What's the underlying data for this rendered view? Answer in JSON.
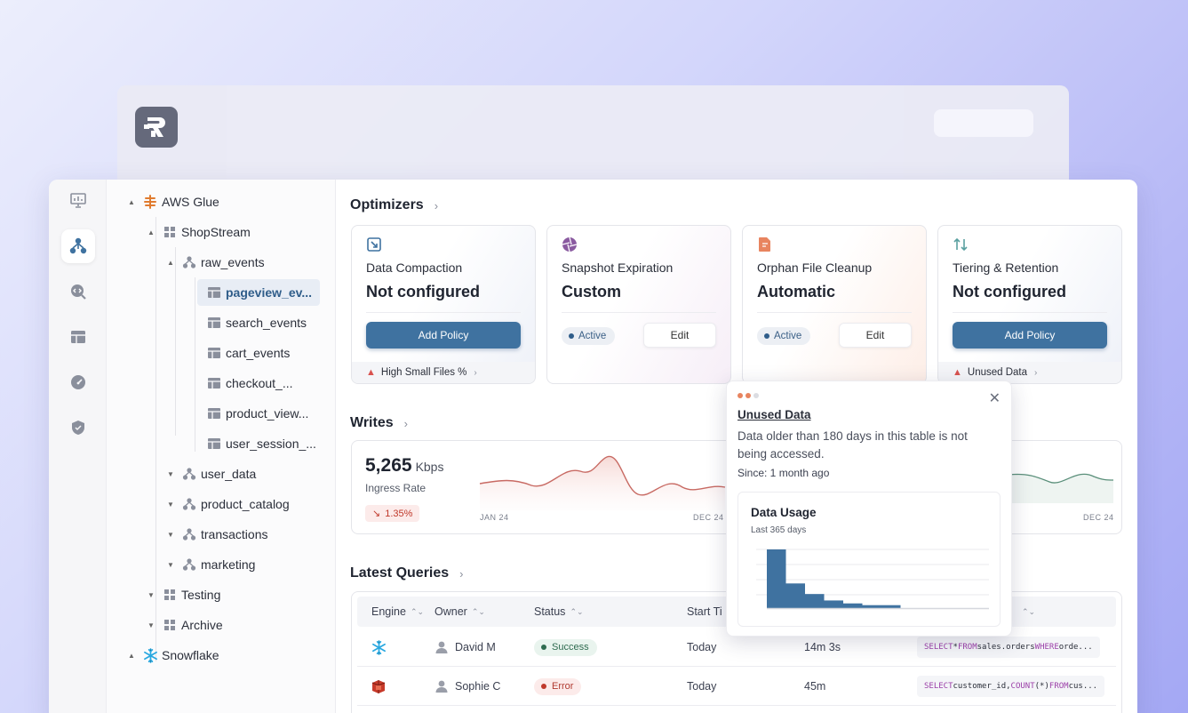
{
  "tree": {
    "items": [
      {
        "label": "AWS Glue",
        "kind": "glue"
      },
      {
        "label": "ShopStream",
        "kind": "grid"
      },
      {
        "label": "raw_events",
        "kind": "schema"
      },
      {
        "label": "pageview_ev...",
        "kind": "table"
      },
      {
        "label": "search_events",
        "kind": "table"
      },
      {
        "label": "cart_events",
        "kind": "table"
      },
      {
        "label": "checkout_...",
        "kind": "table"
      },
      {
        "label": "product_view...",
        "kind": "table"
      },
      {
        "label": "user_session_...",
        "kind": "table"
      },
      {
        "label": "user_data",
        "kind": "schema"
      },
      {
        "label": "product_catalog",
        "kind": "schema"
      },
      {
        "label": "transactions",
        "kind": "schema"
      },
      {
        "label": "marketing",
        "kind": "schema"
      },
      {
        "label": "Testing",
        "kind": "grid"
      },
      {
        "label": "Archive",
        "kind": "grid"
      },
      {
        "label": "Snowflake",
        "kind": "snowflake"
      }
    ]
  },
  "optimizers": {
    "title": "Optimizers",
    "cards": [
      {
        "name": "Data Compaction",
        "status": "Not configured",
        "button": "Add Policy",
        "footer": "High Small Files %"
      },
      {
        "name": "Snapshot Expiration",
        "status": "Custom",
        "active": "Active",
        "edit": "Edit"
      },
      {
        "name": "Orphan File Cleanup",
        "status": "Automatic",
        "active": "Active",
        "edit": "Edit"
      },
      {
        "name": "Tiering & Retention",
        "status": "Not configured",
        "button": "Add Policy",
        "footer": "Unused Data"
      }
    ]
  },
  "writes": {
    "title": "Writes",
    "value": "5,265",
    "unit": "Kbps",
    "label": "Ingress Rate",
    "delta": "1.35%",
    "x_start": "JAN 24",
    "x_end": "DEC 24",
    "x_end_right": "DEC 24"
  },
  "queries": {
    "title": "Latest Queries",
    "columns": [
      "Engine",
      "Owner",
      "Status",
      "Start Ti"
    ],
    "rows": [
      {
        "engine": "snowflake",
        "owner": "David M",
        "status": "Success",
        "start": "Today",
        "duration": "14m 3s",
        "sql": [
          [
            "kw",
            "SELECT"
          ],
          [
            "t",
            " * "
          ],
          [
            "kw",
            "FROM"
          ],
          [
            "t",
            " sales.orders "
          ],
          [
            "kw",
            "WHERE"
          ],
          [
            "t",
            " orde..."
          ]
        ]
      },
      {
        "engine": "redshift",
        "owner": "Sophie C",
        "status": "Error",
        "start": "Today",
        "duration": "45m",
        "sql": [
          [
            "kw",
            "SELECT"
          ],
          [
            "t",
            " customer_id, "
          ],
          [
            "kw",
            "COUNT"
          ],
          [
            "t",
            "(*) "
          ],
          [
            "kw",
            "FROM"
          ],
          [
            "t",
            " cus..."
          ]
        ]
      }
    ]
  },
  "popover": {
    "title": "Unused Data",
    "description": "Data older than 180 days in this table is not being accessed.",
    "since": "Since: 1 month ago",
    "usage_title": "Data Usage",
    "usage_sub": "Last 365 days"
  },
  "chart_data": {
    "type": "bar",
    "title": "Data Usage",
    "subtitle": "Last 365 days",
    "values": [
      100,
      42,
      24,
      13,
      8,
      5,
      5
    ]
  },
  "colors": {
    "accent": "#3f72a0",
    "success": "#2e6b4f",
    "error": "#c0392b",
    "writes_line": "#c86a63",
    "writes_line_right": "#5a8f7a"
  }
}
